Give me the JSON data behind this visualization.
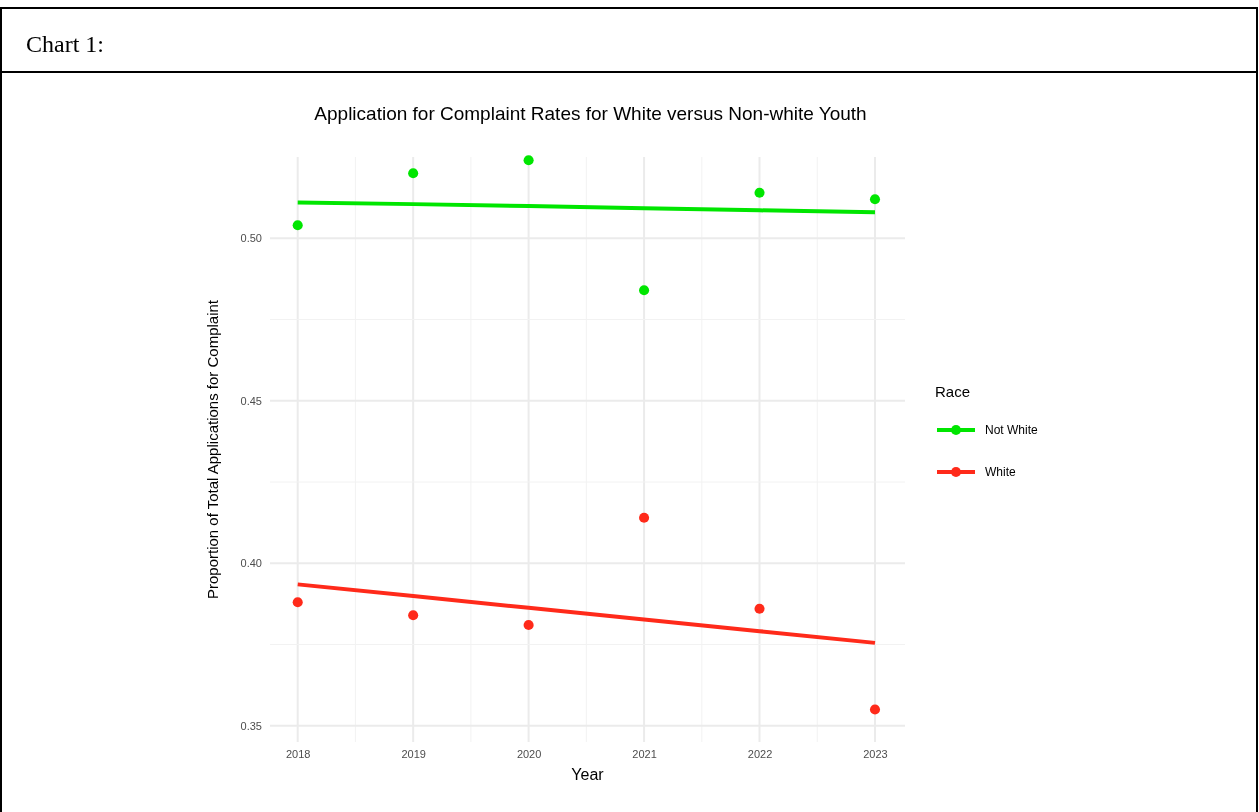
{
  "chart_data": {
    "type": "scatter",
    "title": "Application for Complaint Rates for White versus Non-white Youth",
    "xlabel": "Year",
    "ylabel": "Proportion of Total Applications for Complaint",
    "legend_title": "Race",
    "annotations": [
      "Chart 1:"
    ],
    "x": [
      2018,
      2019,
      2020,
      2021,
      2022,
      2023
    ],
    "series": [
      {
        "name": "Not White",
        "color": "#00e600",
        "values": [
          0.504,
          0.52,
          0.524,
          0.484,
          0.514,
          0.512
        ]
      },
      {
        "name": "White",
        "color": "#ff2a1a",
        "values": [
          0.388,
          0.384,
          0.381,
          0.414,
          0.386,
          0.355
        ]
      },
      {
        "type": "line",
        "marker": "none",
        "color": "#00e600",
        "values": [
          0.511,
          0.5105,
          0.5099,
          0.5092,
          0.5086,
          0.508
        ]
      },
      {
        "type": "line",
        "marker": "none",
        "color": "#ff2a1a",
        "values": [
          0.3935,
          0.3899,
          0.3863,
          0.3827,
          0.3791,
          0.3755
        ]
      }
    ],
    "xlim": [
      2017.76,
      2023.26
    ],
    "xticks": [
      2018,
      2019,
      2020,
      2021,
      2022,
      2023
    ],
    "ylim": [
      0.345,
      0.525
    ],
    "yticks": [
      {
        "value": 0.35,
        "label": "0.35"
      },
      {
        "value": 0.4,
        "label": "0.40"
      },
      {
        "value": 0.45,
        "label": "0.45"
      },
      {
        "value": 0.5,
        "label": "0.50"
      }
    ],
    "grid": true,
    "legend": "right",
    "marker": "circle",
    "line_style": "solid"
  }
}
